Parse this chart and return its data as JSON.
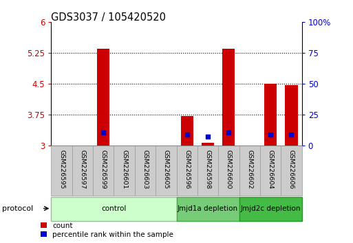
{
  "title": "GDS3037 / 105420520",
  "samples": [
    "GSM226595",
    "GSM226597",
    "GSM226599",
    "GSM226601",
    "GSM226603",
    "GSM226605",
    "GSM226596",
    "GSM226598",
    "GSM226600",
    "GSM226602",
    "GSM226604",
    "GSM226606"
  ],
  "ylim_left": [
    3,
    6
  ],
  "ylim_right": [
    0,
    100
  ],
  "yticks_left": [
    3,
    3.75,
    4.5,
    5.25,
    6
  ],
  "yticks_right": [
    0,
    25,
    50,
    75,
    100
  ],
  "left_tick_labels": [
    "3",
    "3.75",
    "4.5",
    "5.25",
    "6"
  ],
  "right_tick_labels": [
    "0",
    "25",
    "50",
    "75",
    "100%"
  ],
  "left_color": "#cc0000",
  "right_color": "#0000cc",
  "bar_bottom": 3,
  "bar_values": [
    3.0,
    3.0,
    5.35,
    3.0,
    3.0,
    3.0,
    3.72,
    3.07,
    5.35,
    3.0,
    4.5,
    4.47
  ],
  "bar_color": "#cc0000",
  "dot_values": [
    null,
    null,
    3.32,
    null,
    null,
    null,
    3.28,
    3.22,
    3.33,
    null,
    3.28,
    3.28
  ],
  "dot_color": "#0000cc",
  "groups": [
    {
      "label": "control",
      "start": 0,
      "end": 6,
      "color": "#ccffcc",
      "edge": "#99bb99"
    },
    {
      "label": "Jmjd1a depletion",
      "start": 6,
      "end": 9,
      "color": "#77cc77",
      "edge": "#44aa44"
    },
    {
      "label": "Jmjd2c depletion",
      "start": 9,
      "end": 12,
      "color": "#44bb44",
      "edge": "#229922"
    }
  ],
  "protocol_label": "protocol",
  "legend_count_label": "count",
  "legend_pct_label": "percentile rank within the sample",
  "figsize": [
    5.13,
    3.54
  ],
  "dpi": 100,
  "sample_box_color": "#cccccc",
  "sample_box_edge": "#999999",
  "grid_color": "#000000",
  "grid_style": ":"
}
